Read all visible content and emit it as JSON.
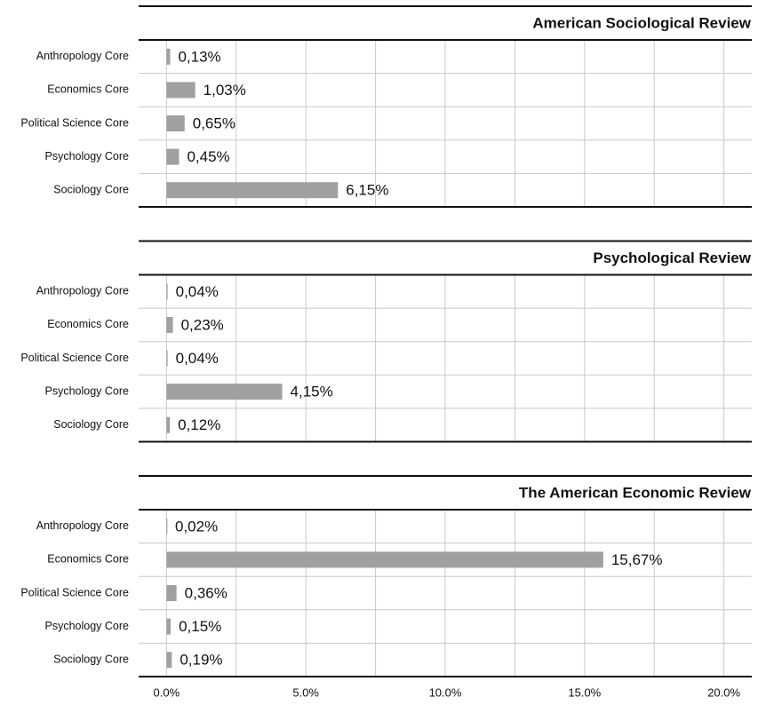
{
  "chart_data": [
    {
      "type": "bar",
      "title": "American Sociological Review",
      "categories": [
        "Anthropology Core",
        "Economics Core",
        "Political Science Core",
        "Psychology Core",
        "Sociology Core"
      ],
      "values": [
        0.13,
        1.03,
        0.65,
        0.45,
        6.15
      ],
      "value_labels": [
        "0,13%",
        "1,03%",
        "0,65%",
        "0,45%",
        "6,15%"
      ],
      "color": "#a0a0a0"
    },
    {
      "type": "bar",
      "title": "Psychological Review",
      "categories": [
        "Anthropology Core",
        "Economics Core",
        "Political Science Core",
        "Psychology Core",
        "Sociology Core"
      ],
      "values": [
        0.04,
        0.23,
        0.04,
        4.15,
        0.12
      ],
      "value_labels": [
        "0,04%",
        "0,23%",
        "0,04%",
        "4,15%",
        "0,12%"
      ],
      "color": "#a0a0a0"
    },
    {
      "type": "bar",
      "title": "The American Economic Review",
      "categories": [
        "Anthropology Core",
        "Economics Core",
        "Political Science Core",
        "Psychology Core",
        "Sociology Core"
      ],
      "values": [
        0.02,
        15.67,
        0.36,
        0.15,
        0.19
      ],
      "value_labels": [
        "0,02%",
        "15,67%",
        "0,36%",
        "0,15%",
        "0,19%"
      ],
      "color": "#a0a0a0",
      "xlim": [
        -1,
        21
      ],
      "xticks": [
        {
          "value": 0,
          "label": "0.0%"
        },
        {
          "value": 5,
          "label": "5.0%"
        },
        {
          "value": 10,
          "label": "10.0%"
        },
        {
          "value": 15,
          "label": "15.0%"
        },
        {
          "value": 20,
          "label": "20.0%"
        }
      ],
      "minor_xticks": [
        2.5,
        7.5,
        12.5,
        17.5
      ],
      "grid": true
    }
  ]
}
